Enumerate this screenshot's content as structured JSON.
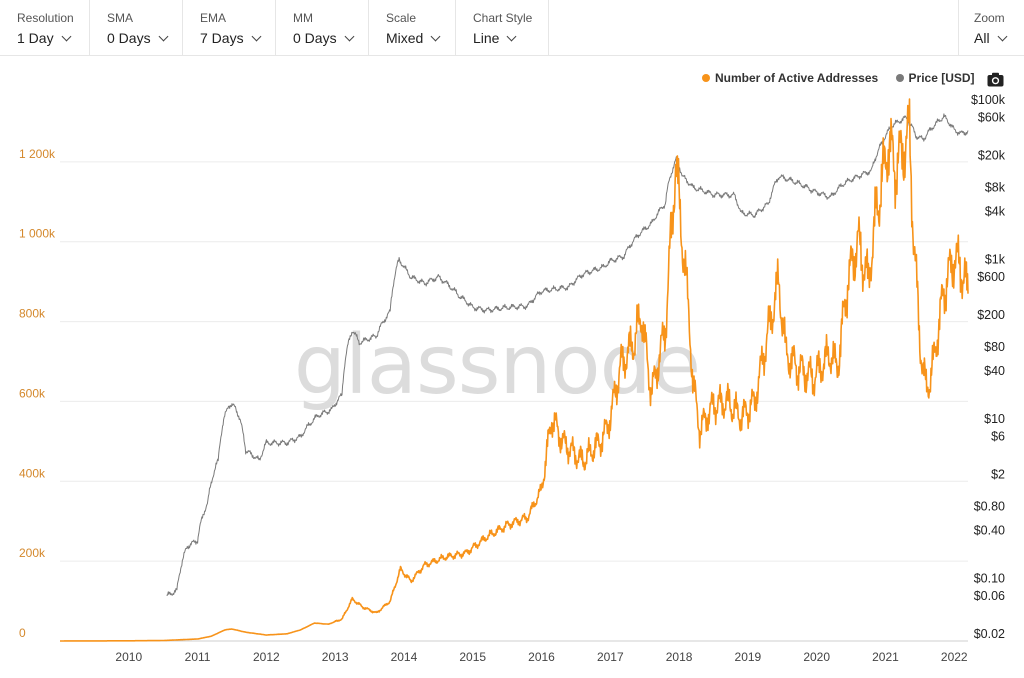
{
  "toolbar": {
    "resolution": {
      "label": "Resolution",
      "value": "1 Day"
    },
    "sma": {
      "label": "SMA",
      "value": "0 Days"
    },
    "ema": {
      "label": "EMA",
      "value": "7 Days"
    },
    "mm": {
      "label": "MM",
      "value": "0 Days"
    },
    "scale": {
      "label": "Scale",
      "value": "Mixed"
    },
    "chart_style": {
      "label": "Chart Style",
      "value": "Line"
    },
    "zoom": {
      "label": "Zoom",
      "value": "All"
    }
  },
  "watermark": "glassnode",
  "icons": {
    "camera": "camera-icon",
    "dropdown": "chevron-down-icon"
  },
  "colors": {
    "active": "#f7931a",
    "price": "#7a7a7a"
  },
  "chart_data": {
    "type": "line",
    "title": "",
    "legend_position": "top-right",
    "grid": true,
    "x": {
      "min": 2009.0,
      "max": 2022.2,
      "ticks": [
        "2010",
        "2011",
        "2012",
        "2013",
        "2014",
        "2015",
        "2016",
        "2017",
        "2018",
        "2019",
        "2020",
        "2021",
        "2022"
      ]
    },
    "y_left": {
      "scale": "linear",
      "range": [
        0,
        1400000
      ],
      "tick_values": [
        0,
        200000,
        400000,
        600000,
        800000,
        1000000,
        1200000
      ],
      "tick_labels": [
        "0",
        "200k",
        "400k",
        "600k",
        "800k",
        "1 000k",
        "1 200k"
      ]
    },
    "y_right": {
      "scale": "log",
      "range": [
        0.02,
        100000
      ],
      "tick_values": [
        100000,
        60000,
        20000,
        8000,
        4000,
        1000,
        600,
        200,
        80,
        40,
        10,
        6,
        2,
        0.8,
        0.4,
        0.1,
        0.06,
        0.02
      ],
      "tick_labels": [
        "$100k",
        "$60k",
        "$20k",
        "$8k",
        "$4k",
        "$1k",
        "$600",
        "$200",
        "$80",
        "$40",
        "$10",
        "$6",
        "$2",
        "$0.80",
        "$0.40",
        "$0.10",
        "$0.06",
        "$0.02"
      ]
    },
    "series": [
      {
        "name": "Number of Active Addresses",
        "axis": "left",
        "color": "#f7931a",
        "points": [
          [
            2009.0,
            100
          ],
          [
            2009.5,
            300
          ],
          [
            2010.0,
            500
          ],
          [
            2010.5,
            1200
          ],
          [
            2011.0,
            5000
          ],
          [
            2011.2,
            12000
          ],
          [
            2011.4,
            28000
          ],
          [
            2011.5,
            30000
          ],
          [
            2011.7,
            22000
          ],
          [
            2012.0,
            15000
          ],
          [
            2012.3,
            18000
          ],
          [
            2012.5,
            28000
          ],
          [
            2012.7,
            45000
          ],
          [
            2012.9,
            42000
          ],
          [
            2013.1,
            55000
          ],
          [
            2013.25,
            105000
          ],
          [
            2013.4,
            85000
          ],
          [
            2013.6,
            70000
          ],
          [
            2013.8,
            100000
          ],
          [
            2013.95,
            180000
          ],
          [
            2014.1,
            150000
          ],
          [
            2014.3,
            190000
          ],
          [
            2014.6,
            210000
          ],
          [
            2014.9,
            220000
          ],
          [
            2015.2,
            260000
          ],
          [
            2015.5,
            290000
          ],
          [
            2015.8,
            310000
          ],
          [
            2016.0,
            380000
          ],
          [
            2016.15,
            560000
          ],
          [
            2016.3,
            500000
          ],
          [
            2016.6,
            450000
          ],
          [
            2016.9,
            510000
          ],
          [
            2017.0,
            560000
          ],
          [
            2017.15,
            690000
          ],
          [
            2017.35,
            750000
          ],
          [
            2017.45,
            820000
          ],
          [
            2017.6,
            620000
          ],
          [
            2017.8,
            780000
          ],
          [
            2017.95,
            1200000
          ],
          [
            2018.05,
            1000000
          ],
          [
            2018.1,
            900000
          ],
          [
            2018.15,
            800000
          ],
          [
            2018.2,
            650000
          ],
          [
            2018.3,
            530000
          ],
          [
            2018.5,
            590000
          ],
          [
            2018.7,
            600000
          ],
          [
            2018.9,
            560000
          ],
          [
            2019.1,
            600000
          ],
          [
            2019.3,
            780000
          ],
          [
            2019.45,
            900000
          ],
          [
            2019.55,
            720000
          ],
          [
            2019.75,
            680000
          ],
          [
            2019.95,
            660000
          ],
          [
            2020.2,
            720000
          ],
          [
            2020.3,
            680000
          ],
          [
            2020.45,
            900000
          ],
          [
            2020.6,
            1000000
          ],
          [
            2020.75,
            900000
          ],
          [
            2020.85,
            1050000
          ],
          [
            2020.95,
            1150000
          ],
          [
            2021.05,
            1250000
          ],
          [
            2021.15,
            1180000
          ],
          [
            2021.25,
            1230000
          ],
          [
            2021.35,
            1270000
          ],
          [
            2021.4,
            1050000
          ],
          [
            2021.5,
            750000
          ],
          [
            2021.6,
            620000
          ],
          [
            2021.7,
            700000
          ],
          [
            2021.85,
            880000
          ],
          [
            2022.0,
            960000
          ],
          [
            2022.1,
            930000
          ],
          [
            2022.2,
            880000
          ]
        ]
      },
      {
        "name": "Price [USD]",
        "axis": "right",
        "color": "#7a7a7a",
        "points": [
          [
            2010.55,
            0.06
          ],
          [
            2010.7,
            0.07
          ],
          [
            2010.85,
            0.25
          ],
          [
            2011.0,
            0.3
          ],
          [
            2011.15,
            0.9
          ],
          [
            2011.3,
            3
          ],
          [
            2011.45,
            15
          ],
          [
            2011.55,
            14
          ],
          [
            2011.7,
            4
          ],
          [
            2011.9,
            3
          ],
          [
            2012.0,
            5
          ],
          [
            2012.3,
            5
          ],
          [
            2012.5,
            6
          ],
          [
            2012.75,
            11
          ],
          [
            2012.95,
            13
          ],
          [
            2013.1,
            20
          ],
          [
            2013.25,
            130
          ],
          [
            2013.35,
            90
          ],
          [
            2013.6,
            110
          ],
          [
            2013.8,
            220
          ],
          [
            2013.93,
            1000
          ],
          [
            2014.0,
            800
          ],
          [
            2014.1,
            600
          ],
          [
            2014.3,
            500
          ],
          [
            2014.5,
            600
          ],
          [
            2014.8,
            350
          ],
          [
            2015.0,
            250
          ],
          [
            2015.2,
            230
          ],
          [
            2015.5,
            250
          ],
          [
            2015.8,
            260
          ],
          [
            2016.0,
            400
          ],
          [
            2016.4,
            450
          ],
          [
            2016.6,
            650
          ],
          [
            2016.9,
            800
          ],
          [
            2017.0,
            950
          ],
          [
            2017.2,
            1100
          ],
          [
            2017.4,
            2000
          ],
          [
            2017.6,
            2800
          ],
          [
            2017.8,
            5000
          ],
          [
            2017.96,
            18000
          ],
          [
            2018.05,
            11000
          ],
          [
            2018.2,
            8000
          ],
          [
            2018.5,
            6500
          ],
          [
            2018.8,
            6400
          ],
          [
            2018.9,
            3800
          ],
          [
            2019.1,
            3600
          ],
          [
            2019.3,
            5000
          ],
          [
            2019.45,
            11000
          ],
          [
            2019.6,
            10000
          ],
          [
            2019.8,
            8500
          ],
          [
            2019.95,
            7200
          ],
          [
            2020.2,
            6000
          ],
          [
            2020.4,
            9000
          ],
          [
            2020.6,
            11000
          ],
          [
            2020.8,
            13000
          ],
          [
            2020.95,
            29000
          ],
          [
            2021.1,
            48000
          ],
          [
            2021.3,
            60000
          ],
          [
            2021.45,
            35000
          ],
          [
            2021.55,
            32000
          ],
          [
            2021.7,
            47000
          ],
          [
            2021.85,
            62000
          ],
          [
            2022.0,
            42000
          ],
          [
            2022.1,
            38000
          ],
          [
            2022.2,
            40000
          ]
        ]
      }
    ]
  }
}
